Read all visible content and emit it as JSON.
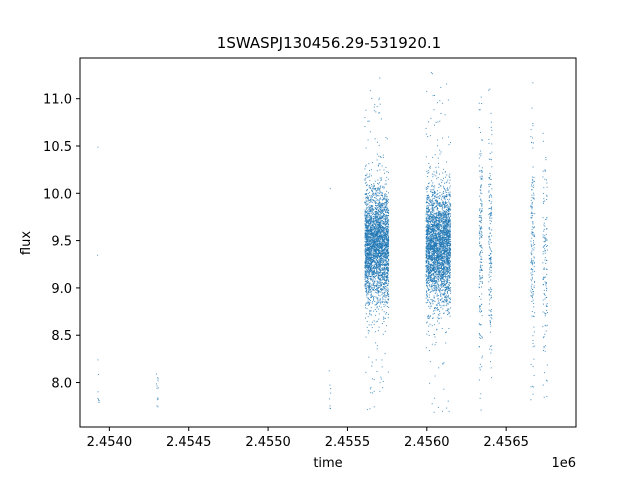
{
  "chart_data": {
    "type": "scatter",
    "title": "1SWASPJ130456.29-531920.1",
    "xlabel": "time",
    "ylabel": "flux",
    "x_offset_label": "1e6",
    "xlim": [
      2453815,
      2456940
    ],
    "ylim": [
      7.53,
      11.43
    ],
    "x_ticks": [
      2454000,
      2454500,
      2455000,
      2455500,
      2456000,
      2456500
    ],
    "x_tick_labels": [
      "2.4540",
      "2.4545",
      "2.4550",
      "2.4555",
      "2.4560",
      "2.4565"
    ],
    "y_ticks": [
      8.0,
      8.5,
      9.0,
      9.5,
      10.0,
      10.5,
      11.0
    ],
    "y_tick_labels": [
      "8.0",
      "8.5",
      "9.0",
      "9.5",
      "10.0",
      "10.5",
      "11.0"
    ],
    "grid": false,
    "point_color": "#1f77b4",
    "clusters": [
      {
        "x_start": 2453925,
        "x_end": 2453935,
        "y_center": 7.95,
        "y_spread": 0.2,
        "count": 12
      },
      {
        "x_start": 2454295,
        "x_end": 2454310,
        "y_center": 7.9,
        "y_spread": 0.2,
        "count": 15
      },
      {
        "x_start": 2455385,
        "x_end": 2455395,
        "y_center": 7.9,
        "y_spread": 0.2,
        "count": 10
      },
      {
        "x_start": 2455610,
        "x_end": 2455760,
        "y_center": 9.45,
        "y_spread": 0.3,
        "count": 3200
      },
      {
        "x_start": 2455995,
        "x_end": 2456150,
        "y_center": 9.45,
        "y_spread": 0.3,
        "count": 3200
      },
      {
        "x_start": 2456330,
        "x_end": 2456350,
        "y_center": 9.4,
        "y_spread": 0.6,
        "count": 180
      },
      {
        "x_start": 2456390,
        "x_end": 2456410,
        "y_center": 9.4,
        "y_spread": 0.6,
        "count": 160
      },
      {
        "x_start": 2456655,
        "x_end": 2456680,
        "y_center": 9.4,
        "y_spread": 0.6,
        "count": 160
      },
      {
        "x_start": 2456730,
        "x_end": 2456760,
        "y_center": 9.35,
        "y_spread": 0.6,
        "count": 130
      }
    ]
  }
}
